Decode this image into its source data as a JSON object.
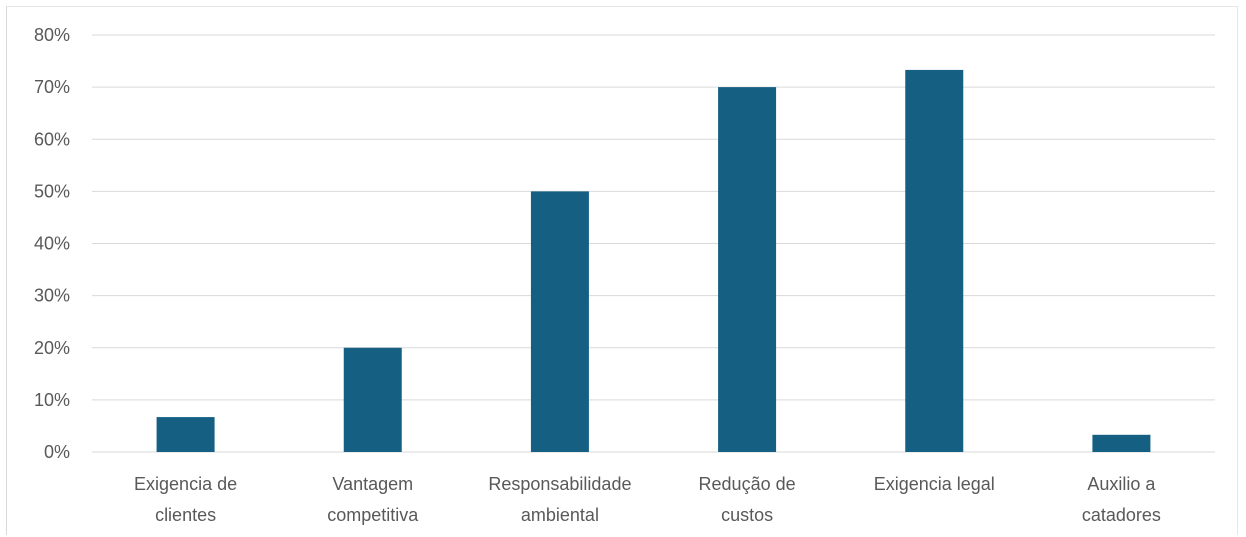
{
  "chart_data": {
    "type": "bar",
    "title": "",
    "xlabel": "",
    "ylabel": "",
    "categories": [
      [
        "Exigencia de",
        "clientes"
      ],
      [
        "Vantagem",
        "competitiva"
      ],
      [
        "Responsabilidade",
        "ambiental"
      ],
      [
        "Redução de",
        "custos"
      ],
      [
        "Exigencia legal"
      ],
      [
        "Auxilio a",
        "catadores"
      ]
    ],
    "values": [
      6.7,
      20,
      50,
      70,
      73.3,
      3.3
    ],
    "ylim": [
      0,
      80
    ],
    "yticks": [
      0,
      10,
      20,
      30,
      40,
      50,
      60,
      70,
      80
    ],
    "ytick_labels": [
      "0%",
      "10%",
      "20%",
      "30%",
      "40%",
      "50%",
      "60%",
      "70%",
      "80%"
    ],
    "grid": true,
    "legend": "none",
    "colors": {
      "bar": "#156082",
      "grid": "#d9d9d9",
      "text": "#595959"
    }
  }
}
